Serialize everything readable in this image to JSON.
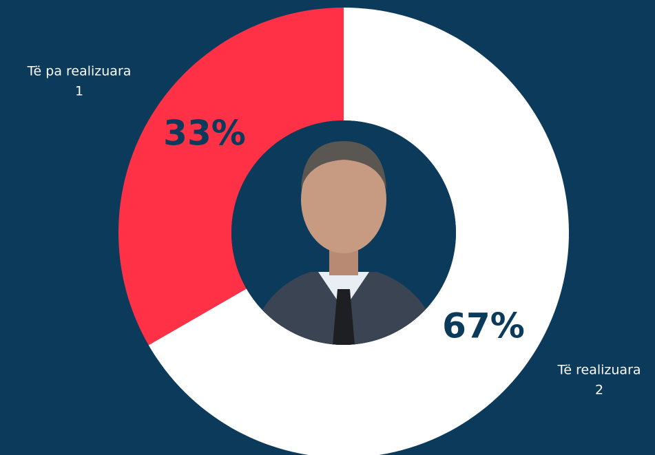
{
  "chart_data": {
    "type": "donut",
    "categories": [
      "Të pa realizuara",
      "Të realizuara"
    ],
    "values": [
      1,
      2
    ],
    "percent_labels": [
      "33%",
      "67%"
    ],
    "colors": [
      "#ff3146",
      "#ffffff"
    ]
  }
}
